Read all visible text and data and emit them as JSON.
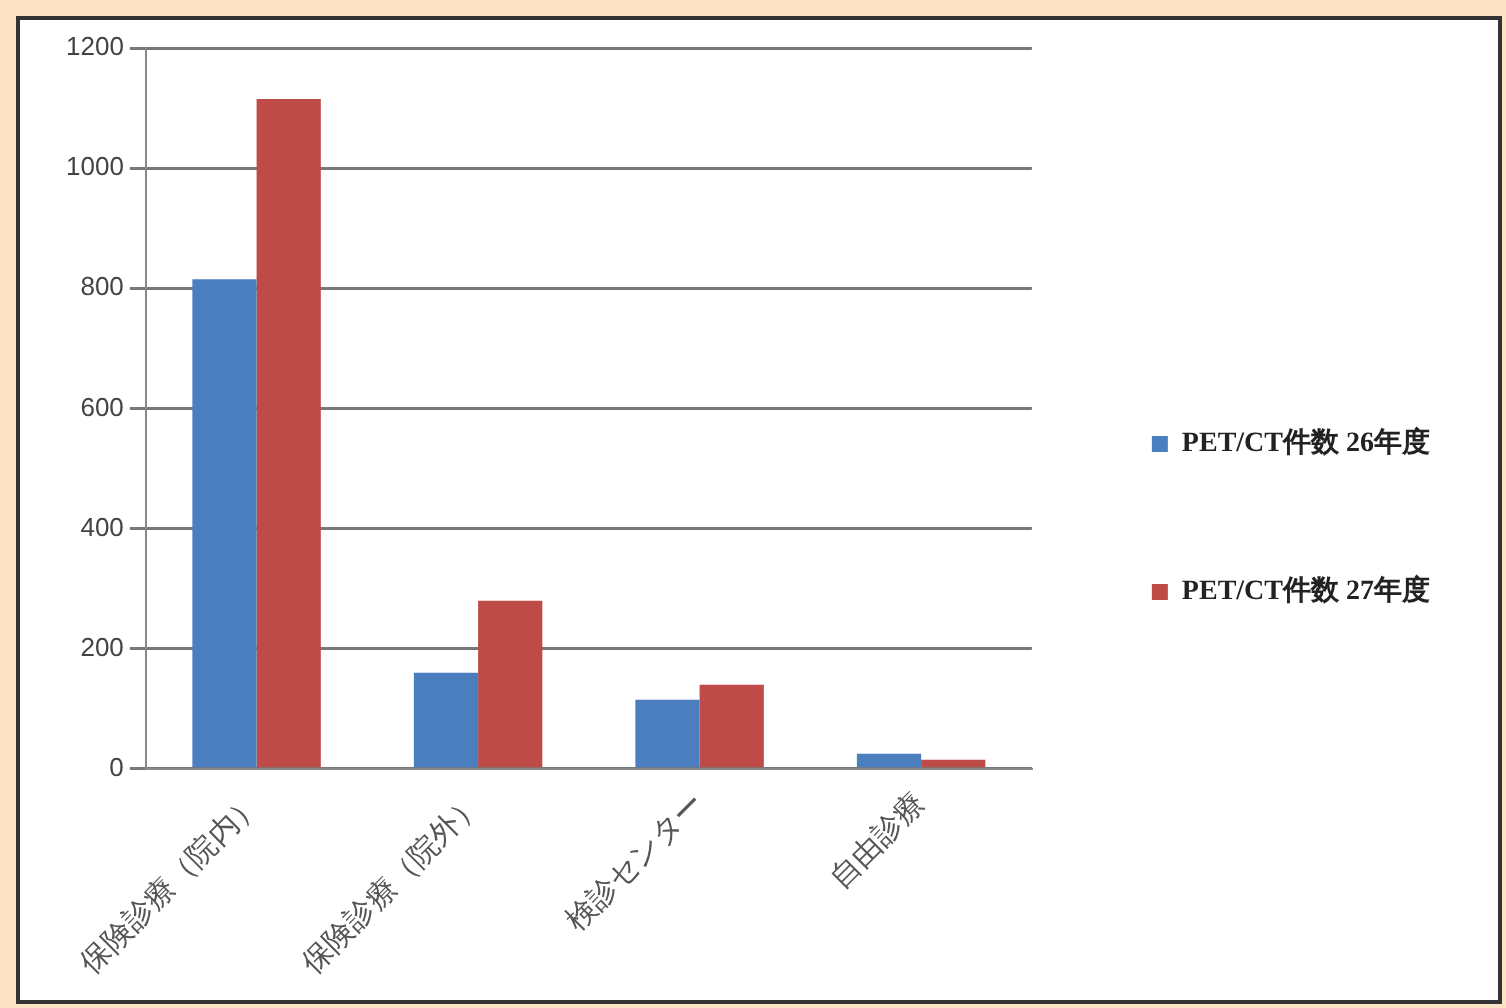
{
  "chart_data": {
    "type": "bar",
    "categories": [
      "保険診療（院内）",
      "保険診療（院外）",
      "検診センター",
      "自由診療"
    ],
    "series": [
      {
        "name": "PET/CT件数 26年度",
        "color": "#4a7ebf",
        "values": [
          815,
          160,
          115,
          25
        ]
      },
      {
        "name": "PET/CT件数 27年度",
        "color": "#be4b48",
        "values": [
          1115,
          280,
          140,
          15
        ]
      }
    ],
    "ylim": [
      0,
      1200
    ],
    "yticks": [
      0,
      200,
      400,
      600,
      800,
      1000,
      1200
    ],
    "grid": "y",
    "legend": "right"
  }
}
